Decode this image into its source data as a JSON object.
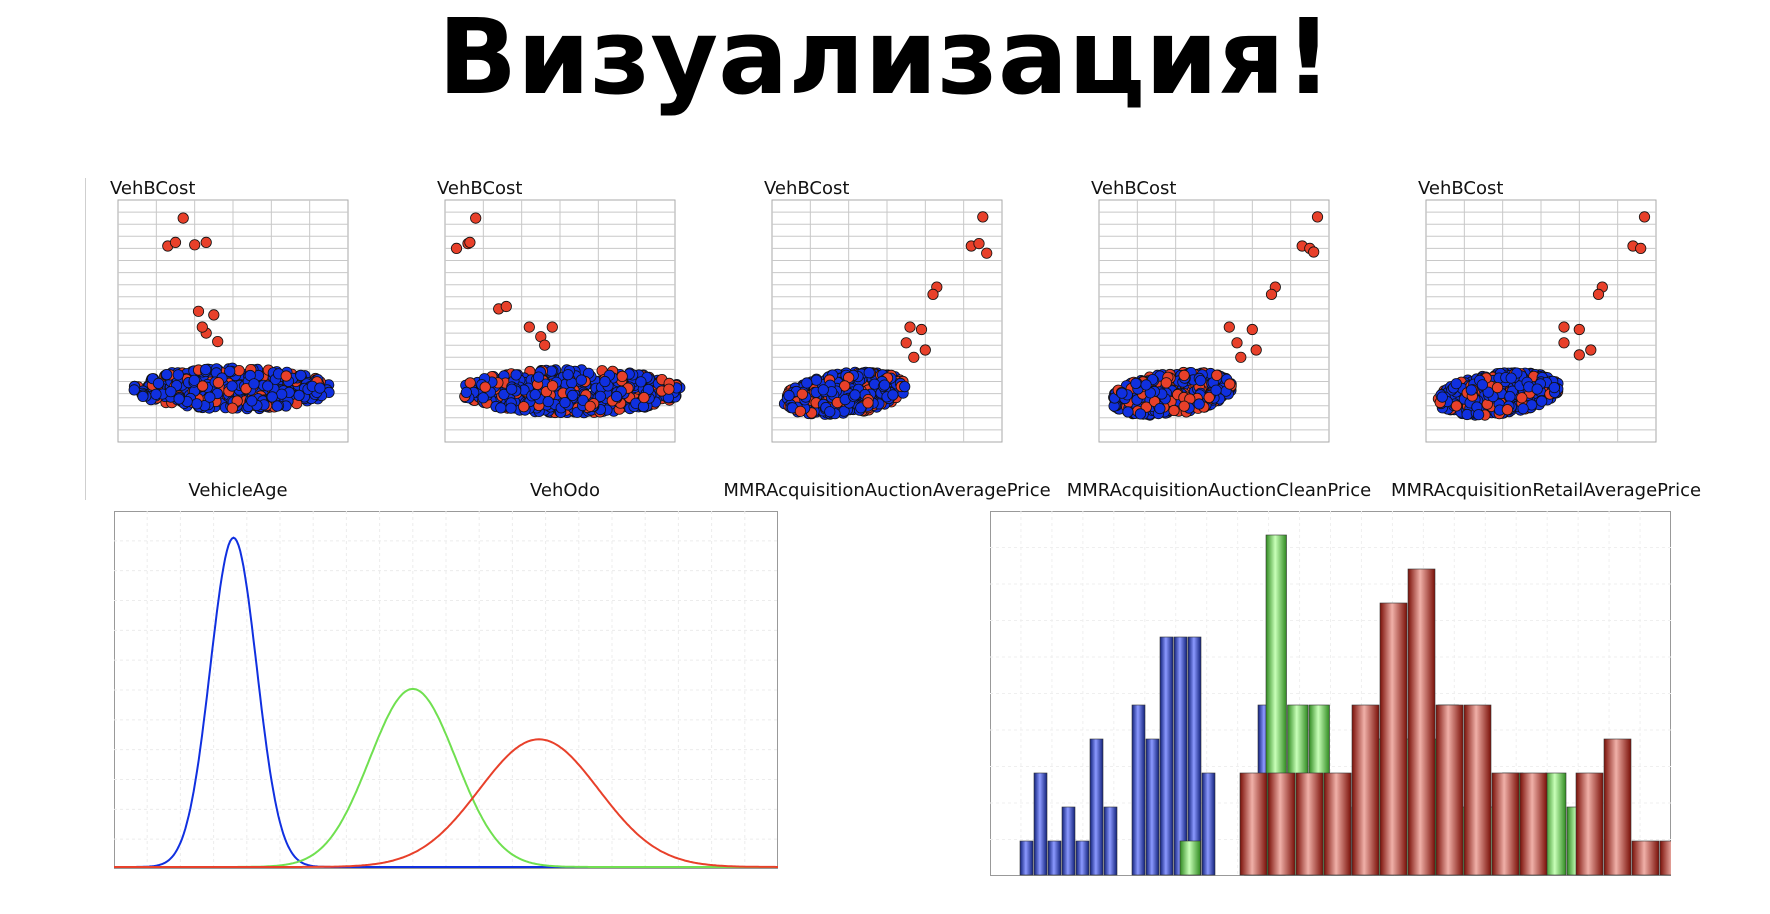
{
  "title": "Визуализация!",
  "colors": {
    "red": "#e8402a",
    "blue": "#1030e0",
    "green": "#70e050",
    "darkblue": "#1a2b9e",
    "darkgreen": "#3fa82c",
    "darkred": "#a82218"
  },
  "chart_data": [
    {
      "type": "scatter",
      "ylabel": "VehBCost",
      "xlabel": "VehicleAge",
      "grid": true,
      "outliers": [
        [
          1.7,
          18.5
        ],
        [
          1.3,
          16.2
        ],
        [
          1.5,
          16.5
        ],
        [
          2.0,
          16.3
        ],
        [
          2.3,
          16.5
        ],
        [
          2.1,
          10.8
        ],
        [
          2.5,
          10.5
        ],
        [
          2.3,
          9.0
        ],
        [
          2.6,
          8.3
        ],
        [
          2.2,
          9.5
        ]
      ]
    },
    {
      "type": "scatter",
      "ylabel": "VehBCost",
      "xlabel": "VehOdo",
      "grid": true,
      "outliers": [
        [
          0.8,
          18.5
        ],
        [
          0.3,
          16.0
        ],
        [
          0.6,
          16.4
        ],
        [
          0.65,
          16.5
        ],
        [
          1.4,
          11.0
        ],
        [
          1.6,
          11.2
        ],
        [
          2.5,
          8.7
        ],
        [
          2.8,
          9.5
        ],
        [
          2.6,
          8.0
        ],
        [
          2.2,
          9.5
        ]
      ]
    },
    {
      "type": "scatter",
      "ylabel": "VehBCost",
      "xlabel": "MMRAcquisitionAuctionAveragePrice",
      "grid": true,
      "outliers": [
        [
          5.5,
          18.6
        ],
        [
          5.2,
          16.2
        ],
        [
          5.4,
          16.4
        ],
        [
          5.6,
          15.6
        ],
        [
          4.3,
          12.8
        ],
        [
          4.2,
          12.2
        ],
        [
          3.6,
          9.5
        ],
        [
          3.9,
          9.3
        ],
        [
          4.0,
          7.6
        ],
        [
          3.5,
          8.2
        ],
        [
          3.7,
          7.0
        ]
      ]
    },
    {
      "type": "scatter",
      "ylabel": "VehBCost",
      "xlabel": "MMRAcquisitionAuctionCleanPrice",
      "grid": true,
      "outliers": [
        [
          5.7,
          18.6
        ],
        [
          5.3,
          16.2
        ],
        [
          5.5,
          16.0
        ],
        [
          5.6,
          15.7
        ],
        [
          4.6,
          12.8
        ],
        [
          4.5,
          12.2
        ],
        [
          3.4,
          9.5
        ],
        [
          4.0,
          9.3
        ],
        [
          4.1,
          7.6
        ],
        [
          3.6,
          8.2
        ],
        [
          3.7,
          7.0
        ]
      ]
    },
    {
      "type": "scatter",
      "ylabel": "VehBCost",
      "xlabel": "MMRAcquisitionRetailAveragePrice",
      "grid": true,
      "outliers": [
        [
          5.7,
          18.6
        ],
        [
          5.4,
          16.2
        ],
        [
          5.6,
          16.0
        ],
        [
          4.6,
          12.8
        ],
        [
          4.5,
          12.2
        ],
        [
          3.6,
          9.5
        ],
        [
          4.0,
          9.3
        ],
        [
          4.3,
          7.6
        ],
        [
          3.6,
          8.2
        ],
        [
          4.0,
          7.2
        ]
      ]
    },
    {
      "type": "line",
      "grid": true,
      "xlim": [
        0,
        10
      ],
      "ylim": [
        0,
        1
      ],
      "series": [
        {
          "color": "blue",
          "mean": 1.8,
          "sd": 0.35,
          "peak": 0.98
        },
        {
          "color": "green",
          "mean": 4.5,
          "sd": 0.65,
          "peak": 0.53
        },
        {
          "color": "red",
          "mean": 6.4,
          "sd": 0.9,
          "peak": 0.38
        }
      ]
    },
    {
      "type": "bar",
      "grid": true,
      "ylim": [
        0,
        10
      ],
      "series": [
        {
          "color": "blue",
          "values": [
            1,
            3,
            1,
            2,
            1,
            4,
            2,
            0,
            5,
            4,
            7,
            7,
            7,
            3,
            0,
            0,
            0,
            5,
            2,
            0,
            2,
            0
          ]
        },
        {
          "color": "green",
          "values": [
            1,
            0,
            0,
            1,
            10,
            5,
            5,
            2,
            3,
            4,
            4,
            4,
            5,
            2,
            2,
            3,
            2,
            3,
            2
          ]
        },
        {
          "color": "red",
          "values": [
            3,
            3,
            3,
            3,
            5,
            8,
            9,
            5,
            5,
            3,
            3,
            0,
            3,
            4,
            1,
            1,
            1,
            5,
            1
          ]
        }
      ]
    }
  ]
}
